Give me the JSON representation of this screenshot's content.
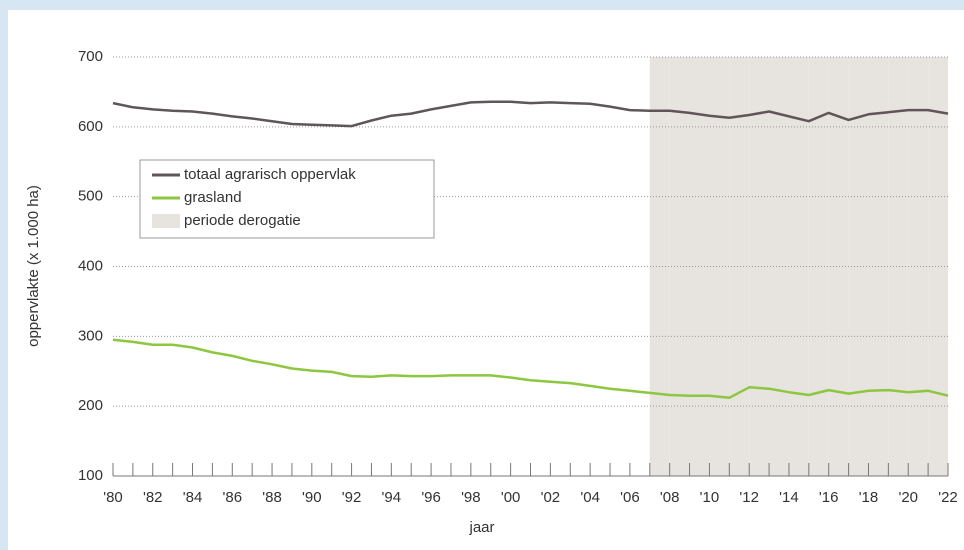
{
  "chart_data": {
    "type": "line",
    "x_label": "jaar",
    "y_label": "oppervlakte (x 1.000 ha)",
    "categories": [
      "'80",
      null,
      "'82",
      null,
      "'84",
      null,
      "'86",
      null,
      "'88",
      null,
      "'90",
      null,
      "'92",
      null,
      "'94",
      null,
      "'96",
      null,
      "'98",
      null,
      "'00",
      null,
      "'02",
      null,
      "'04",
      null,
      "'06",
      null,
      "'08",
      null,
      "'10",
      null,
      "'12",
      null,
      "'14",
      null,
      "'16",
      null,
      "'18",
      null,
      "'20",
      null,
      "'22"
    ],
    "series": [
      {
        "name": "totaal agrarisch oppervlak",
        "color": "#5f5658",
        "style": "line",
        "values": [
          634,
          628,
          625,
          623,
          622,
          619,
          615,
          612,
          608,
          604,
          603,
          602,
          601,
          609,
          616,
          619,
          625,
          630,
          635,
          636,
          636,
          634,
          635,
          634,
          633,
          629,
          624,
          623,
          623,
          620,
          616,
          613,
          617,
          622,
          615,
          608,
          620,
          610,
          618,
          621,
          624,
          624,
          619
        ]
      },
      {
        "name": "grasland",
        "color": "#8dc63f",
        "style": "line",
        "values": [
          295,
          292,
          288,
          288,
          284,
          277,
          272,
          265,
          260,
          254,
          251,
          249,
          243,
          242,
          244,
          243,
          243,
          244,
          244,
          244,
          241,
          237,
          235,
          233,
          229,
          225,
          222,
          219,
          216,
          215,
          215,
          212,
          227,
          225,
          220,
          216,
          223,
          218,
          222,
          223,
          220,
          222,
          215
        ]
      },
      {
        "name": "periode derogatie",
        "color": "#e7e3df",
        "style": "band",
        "values": [
          null,
          null,
          null,
          null,
          null,
          null,
          null,
          null,
          null,
          null,
          null,
          null,
          null,
          null,
          null,
          null,
          null,
          null,
          null,
          null,
          null,
          null,
          null,
          null,
          null,
          null,
          null,
          700,
          700,
          700,
          700,
          700,
          700,
          700,
          700,
          700,
          700,
          700,
          700,
          700,
          700,
          700,
          700
        ]
      }
    ],
    "ylim": [
      100,
      700
    ],
    "yticks": [
      100,
      200,
      300,
      400,
      500,
      600,
      700
    ],
    "grid": true,
    "legend": "upper-left"
  }
}
